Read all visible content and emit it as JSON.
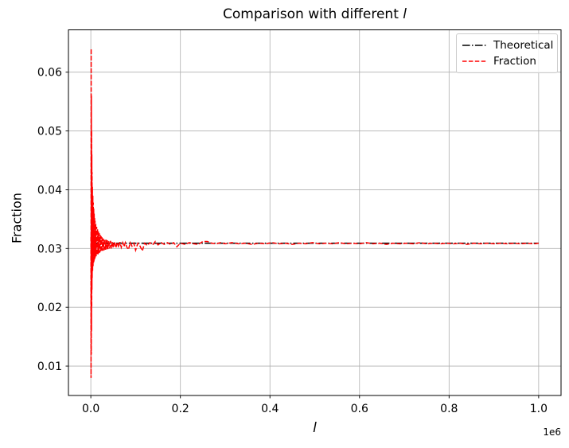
{
  "figure": {
    "title_text": "Comparison with different ",
    "title_math": "l",
    "background": "#ffffff"
  },
  "chart_data": {
    "type": "line",
    "title": "Comparison with different l",
    "xlabel": "l",
    "ylabel": "Fraction",
    "x_scale_offset_label": "1e6",
    "grid": true,
    "grid_color": "#b0b0b0",
    "legend_position": "upper right",
    "xlim": [
      -50000,
      1050000
    ],
    "ylim": [
      0.005,
      0.0672
    ],
    "x_ticks": {
      "values": [
        0,
        200000,
        400000,
        600000,
        800000,
        1000000
      ],
      "labels": [
        "0.0",
        "0.2",
        "0.4",
        "0.6",
        "0.8",
        "1.0"
      ]
    },
    "y_ticks": {
      "values": [
        0.01,
        0.02,
        0.03,
        0.04,
        0.05,
        0.06
      ],
      "labels": [
        "0.01",
        "0.02",
        "0.03",
        "0.04",
        "0.05",
        "0.06"
      ]
    },
    "theoretical_value": 0.0309,
    "series": [
      {
        "name": "Theoretical",
        "color": "#000000",
        "linestyle": "dashdot",
        "points": [
          [
            0,
            0.0309
          ],
          [
            1000000,
            0.0309
          ]
        ]
      },
      {
        "name": "Fraction",
        "color": "#ff0000",
        "linestyle": "dashed",
        "points": [
          [
            250,
            0.032
          ],
          [
            500,
            0.008
          ],
          [
            750,
            0.064
          ],
          [
            1000,
            0.012
          ],
          [
            1250,
            0.056
          ],
          [
            1500,
            0.016
          ],
          [
            1750,
            0.05
          ],
          [
            2000,
            0.02
          ],
          [
            2250,
            0.046
          ],
          [
            2500,
            0.023
          ],
          [
            2750,
            0.043
          ],
          [
            3000,
            0.025
          ],
          [
            3500,
            0.0405
          ],
          [
            4000,
            0.0262
          ],
          [
            4500,
            0.039
          ],
          [
            5000,
            0.027
          ],
          [
            5500,
            0.0378
          ],
          [
            6000,
            0.0275
          ],
          [
            6500,
            0.0368
          ],
          [
            7000,
            0.0278
          ],
          [
            7500,
            0.036
          ],
          [
            8000,
            0.0281
          ],
          [
            8500,
            0.0353
          ],
          [
            9000,
            0.0283
          ],
          [
            9500,
            0.0347
          ],
          [
            10000,
            0.0285
          ],
          [
            11000,
            0.0342
          ],
          [
            12000,
            0.0287
          ],
          [
            13000,
            0.0337
          ],
          [
            14000,
            0.0289
          ],
          [
            15000,
            0.0333
          ],
          [
            16000,
            0.029
          ],
          [
            17000,
            0.0329
          ],
          [
            18000,
            0.0292
          ],
          [
            19000,
            0.0326
          ],
          [
            20000,
            0.0293
          ],
          [
            21000,
            0.0323
          ],
          [
            22000,
            0.0294
          ],
          [
            23000,
            0.0321
          ],
          [
            24000,
            0.0295
          ],
          [
            25000,
            0.0319
          ],
          [
            26500,
            0.0296
          ],
          [
            28000,
            0.0317
          ],
          [
            29500,
            0.0297
          ],
          [
            31000,
            0.0316
          ],
          [
            32500,
            0.0298
          ],
          [
            34000,
            0.0315
          ],
          [
            35500,
            0.0298
          ],
          [
            37000,
            0.0314
          ],
          [
            38500,
            0.0299
          ],
          [
            40000,
            0.0313
          ],
          [
            42000,
            0.03
          ],
          [
            44000,
            0.0313
          ],
          [
            46000,
            0.03
          ],
          [
            48000,
            0.0312
          ],
          [
            50000,
            0.0301
          ],
          [
            53000,
            0.0312
          ],
          [
            56000,
            0.0301
          ],
          [
            59000,
            0.0311
          ],
          [
            62000,
            0.0302
          ],
          [
            65000,
            0.0311
          ],
          [
            68000,
            0.0302
          ],
          [
            71000,
            0.031
          ],
          [
            74000,
            0.0303
          ],
          [
            77000,
            0.031
          ],
          [
            80000,
            0.0303
          ],
          [
            84000,
            0.0298
          ],
          [
            88000,
            0.031
          ],
          [
            92000,
            0.0304
          ],
          [
            96000,
            0.0309
          ],
          [
            100000,
            0.0297
          ],
          [
            105000,
            0.0309
          ],
          [
            110000,
            0.0304
          ],
          [
            115000,
            0.0296
          ],
          [
            120000,
            0.0309
          ],
          [
            126000,
            0.0305
          ],
          [
            132000,
            0.031
          ],
          [
            138000,
            0.0306
          ],
          [
            144000,
            0.0312
          ],
          [
            150000,
            0.0306
          ],
          [
            157000,
            0.031
          ],
          [
            164000,
            0.0307
          ],
          [
            171000,
            0.031
          ],
          [
            178000,
            0.0307
          ],
          [
            185000,
            0.031
          ],
          [
            192000,
            0.0303
          ],
          [
            200000,
            0.0309
          ],
          [
            210000,
            0.0307
          ],
          [
            220000,
            0.031
          ],
          [
            230000,
            0.0308
          ],
          [
            240000,
            0.0307
          ],
          [
            250000,
            0.0312
          ],
          [
            260000,
            0.0312
          ],
          [
            270000,
            0.0309
          ],
          [
            280000,
            0.0308
          ],
          [
            290000,
            0.031
          ],
          [
            300000,
            0.0308
          ],
          [
            315000,
            0.031
          ],
          [
            330000,
            0.0308
          ],
          [
            345000,
            0.0309
          ],
          [
            360000,
            0.0307
          ],
          [
            375000,
            0.0309
          ],
          [
            390000,
            0.0308
          ],
          [
            405000,
            0.031
          ],
          [
            420000,
            0.0308
          ],
          [
            435000,
            0.0309
          ],
          [
            450000,
            0.0307
          ],
          [
            465000,
            0.0309
          ],
          [
            480000,
            0.0308
          ],
          [
            495000,
            0.031
          ],
          [
            510000,
            0.0308
          ],
          [
            525000,
            0.0309
          ],
          [
            540000,
            0.0308
          ],
          [
            555000,
            0.031
          ],
          [
            570000,
            0.0308
          ],
          [
            585000,
            0.0309
          ],
          [
            600000,
            0.0308
          ],
          [
            615000,
            0.031
          ],
          [
            630000,
            0.0308
          ],
          [
            645000,
            0.0309
          ],
          [
            660000,
            0.0307
          ],
          [
            675000,
            0.0309
          ],
          [
            690000,
            0.0308
          ],
          [
            705000,
            0.0309
          ],
          [
            720000,
            0.0308
          ],
          [
            735000,
            0.031
          ],
          [
            750000,
            0.0308
          ],
          [
            765000,
            0.0309
          ],
          [
            780000,
            0.0308
          ],
          [
            795000,
            0.0309
          ],
          [
            810000,
            0.0308
          ],
          [
            825000,
            0.0309
          ],
          [
            840000,
            0.0307
          ],
          [
            855000,
            0.0309
          ],
          [
            870000,
            0.0308
          ],
          [
            885000,
            0.0309
          ],
          [
            900000,
            0.0308
          ],
          [
            915000,
            0.0309
          ],
          [
            930000,
            0.0308
          ],
          [
            945000,
            0.0309
          ],
          [
            960000,
            0.0308
          ],
          [
            975000,
            0.0309
          ],
          [
            990000,
            0.0308
          ],
          [
            1000000,
            0.0309
          ]
        ]
      }
    ]
  }
}
